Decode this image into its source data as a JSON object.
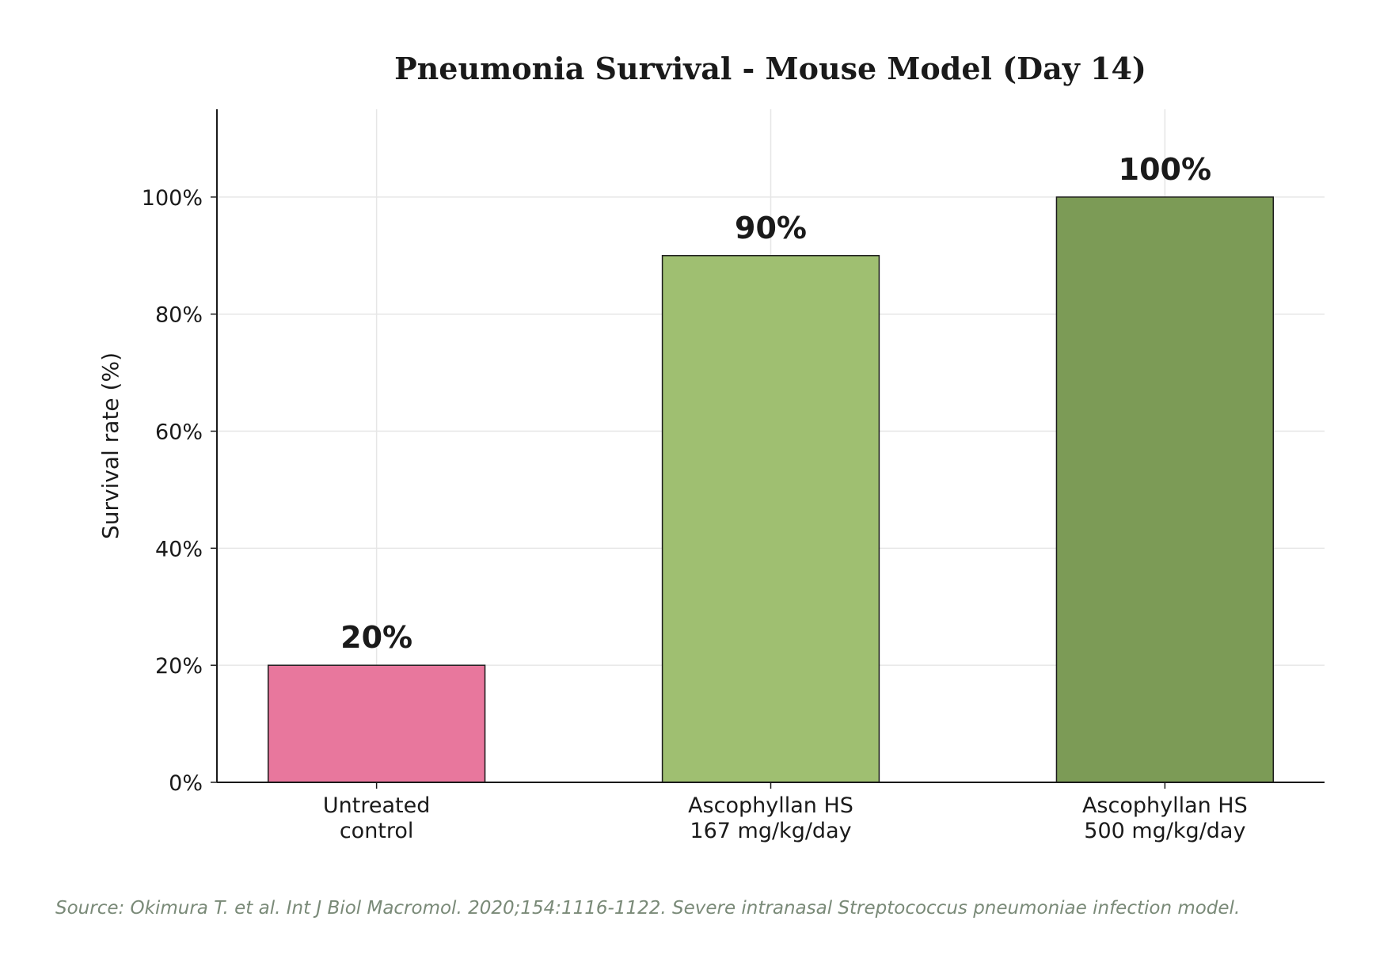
{
  "chart_data": {
    "type": "bar",
    "title": "Pneumonia Survival - Mouse Model (Day 14)",
    "ylabel": "Survival rate (%)",
    "xlabel": "",
    "categories": [
      [
        "Untreated",
        "control"
      ],
      [
        "Ascophyllan HS",
        "167 mg/kg/day"
      ],
      [
        "Ascophyllan HS",
        "500 mg/kg/day"
      ]
    ],
    "values": [
      20,
      90,
      100
    ],
    "value_labels": [
      "20%",
      "90%",
      "100%"
    ],
    "colors": [
      "#e8779d",
      "#9fbf71",
      "#7c9b56"
    ],
    "ylim": [
      0,
      115
    ],
    "yticks": [
      0,
      20,
      40,
      60,
      80,
      100
    ],
    "ytick_labels": [
      "0%",
      "20%",
      "40%",
      "60%",
      "80%",
      "100%"
    ],
    "grid": true,
    "legend": "none"
  },
  "source_note": "Source: Okimura T. et al. Int J Biol Macromol. 2020;154:1116-1122. Severe intranasal Streptococcus pneumoniae infection model."
}
